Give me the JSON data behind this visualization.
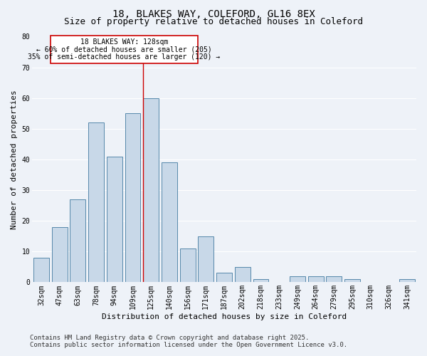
{
  "title1": "18, BLAKES WAY, COLEFORD, GL16 8EX",
  "title2": "Size of property relative to detached houses in Coleford",
  "xlabel": "Distribution of detached houses by size in Coleford",
  "ylabel": "Number of detached properties",
  "bar_labels": [
    "32sqm",
    "47sqm",
    "63sqm",
    "78sqm",
    "94sqm",
    "109sqm",
    "125sqm",
    "140sqm",
    "156sqm",
    "171sqm",
    "187sqm",
    "202sqm",
    "218sqm",
    "233sqm",
    "249sqm",
    "264sqm",
    "279sqm",
    "295sqm",
    "310sqm",
    "326sqm",
    "341sqm"
  ],
  "bar_values": [
    8,
    18,
    27,
    52,
    41,
    55,
    60,
    39,
    11,
    15,
    3,
    5,
    1,
    0,
    2,
    2,
    2,
    1,
    0,
    0,
    1
  ],
  "bar_color": "#c8d8e8",
  "bar_edge_color": "#5588aa",
  "background_color": "#eef2f8",
  "grid_color": "#ffffff",
  "ylim": [
    0,
    80
  ],
  "yticks": [
    0,
    10,
    20,
    30,
    40,
    50,
    60,
    70,
    80
  ],
  "property_line_label": "18 BLAKES WAY: 128sqm",
  "annotation_line1": "← 60% of detached houses are smaller (205)",
  "annotation_line2": "35% of semi-detached houses are larger (120) →",
  "annotation_box_color": "#ffffff",
  "annotation_box_edge": "#cc0000",
  "vline_color": "#cc0000",
  "footer1": "Contains HM Land Registry data © Crown copyright and database right 2025.",
  "footer2": "Contains public sector information licensed under the Open Government Licence v3.0.",
  "title1_fontsize": 10,
  "title2_fontsize": 9,
  "axis_label_fontsize": 8,
  "tick_fontsize": 7,
  "annot_fontsize": 7,
  "footer_fontsize": 6.5
}
